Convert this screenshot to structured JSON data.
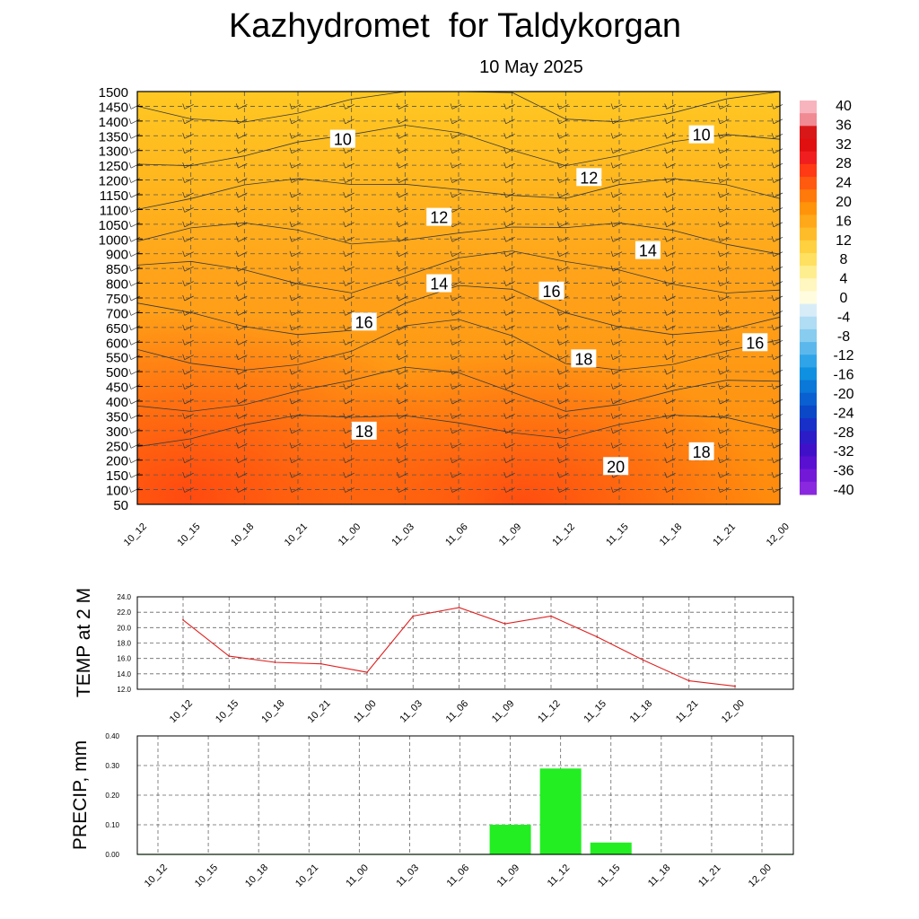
{
  "title": "Kazhydromet  for Taldykorgan",
  "subtitle": "10 May 2025",
  "chart_data": [
    {
      "type": "heatmap",
      "description_role": "cross-section",
      "x_ticks": [
        "10_12",
        "10_15",
        "10_18",
        "10_21",
        "11_00",
        "11_03",
        "11_06",
        "11_09",
        "11_12",
        "11_15",
        "11_18",
        "11_21",
        "12_00"
      ],
      "y_ticks": [
        "1500",
        "1450",
        "1400",
        "1350",
        "1300",
        "1250",
        "1200",
        "1150",
        "1100",
        "1050",
        "1000",
        "900",
        "850",
        "800",
        "750",
        "700",
        "650",
        "600",
        "550",
        "500",
        "450",
        "400",
        "350",
        "300",
        "250",
        "200",
        "150",
        "100",
        "50"
      ],
      "colorbar_labels": [
        "40",
        "36",
        "32",
        "28",
        "24",
        "20",
        "16",
        "12",
        "8",
        "4",
        "0",
        "-4",
        "-8",
        "-12",
        "-16",
        "-20",
        "-24",
        "-28",
        "-32",
        "-36",
        "-40"
      ],
      "colorbar_colors": [
        "#f8b4bd",
        "#f08a93",
        "#d81818",
        "#e01010",
        "#f01e1e",
        "#ff3a14",
        "#ff5a10",
        "#ff7a0a",
        "#ff940a",
        "#ffa81a",
        "#ffbc2a",
        "#ffd040",
        "#ffe060",
        "#ffee90",
        "#fff6c0",
        "#fffce0",
        "#d8ecf8",
        "#b0dcf4",
        "#88ccf0",
        "#5cb8ec",
        "#30a4e8",
        "#1090e0",
        "#0a78d8",
        "#0a60d0",
        "#0a48c8",
        "#1830c8",
        "#2c1cc8",
        "#4010c8",
        "#5a10d0",
        "#7418d8",
        "#8a28e0"
      ],
      "contour_labels": [
        {
          "text": "10",
          "x": 3.5,
          "level": 1340
        },
        {
          "text": "10",
          "x": 10.2,
          "level": 1355
        },
        {
          "text": "12",
          "x": 5.3,
          "level": 1075
        },
        {
          "text": "12",
          "x": 8.1,
          "level": 1210
        },
        {
          "text": "14",
          "x": 5.3,
          "level": 800
        },
        {
          "text": "14",
          "x": 9.2,
          "level": 925
        },
        {
          "text": "16",
          "x": 3.9,
          "level": 670
        },
        {
          "text": "16",
          "x": 7.4,
          "level": 775
        },
        {
          "text": "16",
          "x": 11.2,
          "level": 600
        },
        {
          "text": "18",
          "x": 3.9,
          "level": 300
        },
        {
          "text": "18",
          "x": 8.0,
          "level": 545
        },
        {
          "text": "18",
          "x": 10.2,
          "level": 230
        },
        {
          "text": "20",
          "x": 8.6,
          "level": 180
        }
      ],
      "colors": {
        "warm_core": "#ff4a10",
        "cool_top": "#ffc822",
        "contour_line": "#3a3a3a"
      }
    },
    {
      "type": "line",
      "ylabel": "TEMP at 2 M",
      "categories": [
        "10_12",
        "10_15",
        "10_18",
        "10_21",
        "11_00",
        "11_03",
        "11_06",
        "11_09",
        "11_12",
        "11_15",
        "11_18",
        "11_21",
        "12_00"
      ],
      "values": [
        21.0,
        16.3,
        15.5,
        15.3,
        14.2,
        21.5,
        22.6,
        20.5,
        21.5,
        18.8,
        15.8,
        13.1,
        12.4
      ],
      "ylim": [
        12.0,
        24.0
      ],
      "y_ticks": [
        "12.0",
        "14.0",
        "16.0",
        "18.0",
        "20.0",
        "22.0",
        "24.0"
      ],
      "color": "#e02020"
    },
    {
      "type": "bar",
      "ylabel": "PRECIP, mm",
      "categories": [
        "10_12",
        "10_15",
        "10_18",
        "10_21",
        "11_00",
        "11_03",
        "11_06",
        "11_09",
        "11_12",
        "11_15",
        "11_18",
        "11_21",
        "12_00"
      ],
      "values": [
        0,
        0,
        0,
        0,
        0,
        0,
        0,
        0.1,
        0.29,
        0.04,
        0,
        0,
        0
      ],
      "ylim": [
        0,
        0.4
      ],
      "y_ticks": [
        "0.00",
        "0.10",
        "0.20",
        "0.30",
        "0.40"
      ],
      "color": "#22ee22"
    }
  ]
}
